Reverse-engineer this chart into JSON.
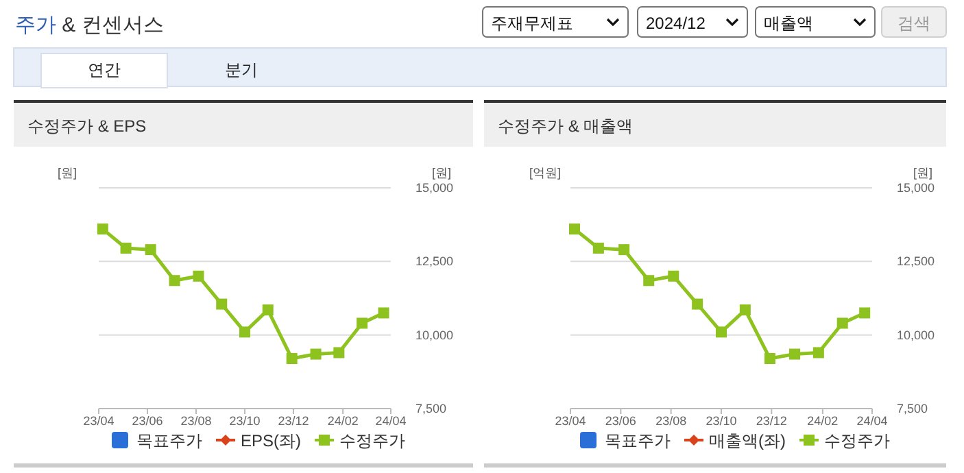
{
  "chart_data": [
    {
      "type": "other",
      "title": "주가 & 컨센서스",
      "annotations": [
        "주재무제표",
        "2024/12",
        "매출액",
        "검색",
        "연간",
        "분기"
      ]
    },
    {
      "type": "line",
      "title": "수정주가 & EPS",
      "ylabel": "[원]",
      "y2label": "[원]",
      "x": [
        "2023-04-06",
        "2023-05-05",
        "2023-06-05",
        "2023-07-05",
        "2023-08-04",
        "2023-09-02",
        "2023-10-01",
        "2023-10-30",
        "2023-11-29",
        "2023-12-29",
        "2024-01-27",
        "2024-02-25",
        "2024-03-23"
      ],
      "xlim": [
        "2023-04",
        "2024-04"
      ],
      "xticks": [
        {
          "value": "2023-04",
          "label": "23/04"
        },
        {
          "value": "2023-06",
          "label": "23/06"
        },
        {
          "value": "2023-08",
          "label": "23/08"
        },
        {
          "value": "2023-10",
          "label": "23/10"
        },
        {
          "value": "2023-12",
          "label": "23/12"
        },
        {
          "value": "2024-02",
          "label": "24/02"
        },
        {
          "value": "2024-04",
          "label": "24/04"
        }
      ],
      "y2lim": [
        7500,
        15000
      ],
      "y2ticks": [
        {
          "value": 7500,
          "label": "7,500"
        },
        {
          "value": 10000,
          "label": "10,000"
        },
        {
          "value": 12500,
          "label": "12,500"
        },
        {
          "value": 15000,
          "label": "15,000"
        }
      ],
      "grid": "y",
      "legend": "bottom",
      "series": [
        {
          "name": "목표주가",
          "type": "bar",
          "color": "#2a6ed8",
          "values": [
            null,
            null,
            null,
            null,
            null,
            null,
            null,
            null,
            null,
            null,
            null,
            null,
            null
          ]
        },
        {
          "name": "EPS(좌)",
          "color": "#d8431c",
          "marker": "diamond",
          "values": [
            null,
            null,
            null,
            null,
            null,
            null,
            null,
            null,
            null,
            null,
            null,
            null,
            null
          ]
        },
        {
          "name": "수정주가",
          "color": "#8ec21f",
          "marker": "square",
          "axis": "y2",
          "values": [
            13600,
            12950,
            12900,
            11850,
            12000,
            11050,
            10100,
            10850,
            9200,
            9350,
            9400,
            10400,
            10750
          ]
        }
      ]
    },
    {
      "type": "line",
      "title": "수정주가 & 매출액",
      "ylabel": "[억원]",
      "y2label": "[원]",
      "x": [
        "2023-04-06",
        "2023-05-05",
        "2023-06-05",
        "2023-07-05",
        "2023-08-04",
        "2023-09-02",
        "2023-10-01",
        "2023-10-30",
        "2023-11-29",
        "2023-12-29",
        "2024-01-27",
        "2024-02-25",
        "2024-03-23"
      ],
      "xlim": [
        "2023-04",
        "2024-04"
      ],
      "xticks": [
        {
          "value": "2023-04",
          "label": "23/04"
        },
        {
          "value": "2023-06",
          "label": "23/06"
        },
        {
          "value": "2023-08",
          "label": "23/08"
        },
        {
          "value": "2023-10",
          "label": "23/10"
        },
        {
          "value": "2023-12",
          "label": "23/12"
        },
        {
          "value": "2024-02",
          "label": "24/02"
        },
        {
          "value": "2024-04",
          "label": "24/04"
        }
      ],
      "y2lim": [
        7500,
        15000
      ],
      "y2ticks": [
        {
          "value": 7500,
          "label": "7,500"
        },
        {
          "value": 10000,
          "label": "10,000"
        },
        {
          "value": 12500,
          "label": "12,500"
        },
        {
          "value": 15000,
          "label": "15,000"
        }
      ],
      "grid": "y",
      "legend": "bottom",
      "series": [
        {
          "name": "목표주가",
          "type": "bar",
          "color": "#2a6ed8",
          "values": [
            null,
            null,
            null,
            null,
            null,
            null,
            null,
            null,
            null,
            null,
            null,
            null,
            null
          ]
        },
        {
          "name": "매출액(좌)",
          "color": "#d8431c",
          "marker": "diamond",
          "values": [
            null,
            null,
            null,
            null,
            null,
            null,
            null,
            null,
            null,
            null,
            null,
            null,
            null
          ]
        },
        {
          "name": "수정주가",
          "color": "#8ec21f",
          "marker": "square",
          "axis": "y2",
          "values": [
            13600,
            12950,
            12900,
            11850,
            12000,
            11050,
            10100,
            10850,
            9200,
            9350,
            9400,
            10400,
            10750
          ]
        }
      ]
    }
  ]
}
